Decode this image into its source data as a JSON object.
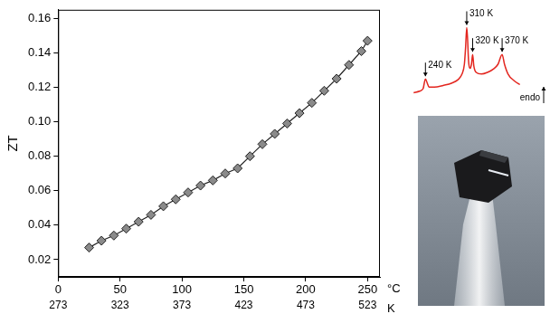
{
  "chart_data": [
    {
      "type": "line",
      "x_label": "°C",
      "x2_label": "K",
      "y_label": "ZT",
      "x": [
        25,
        35,
        45,
        55,
        65,
        75,
        85,
        95,
        105,
        115,
        125,
        135,
        145,
        155,
        165,
        175,
        185,
        195,
        205,
        215,
        225,
        235,
        245,
        250
      ],
      "values": [
        0.027,
        0.031,
        0.034,
        0.038,
        0.042,
        0.046,
        0.051,
        0.055,
        0.059,
        0.063,
        0.066,
        0.07,
        0.073,
        0.08,
        0.087,
        0.093,
        0.099,
        0.105,
        0.111,
        0.118,
        0.125,
        0.133,
        0.141,
        0.147
      ],
      "color": "#222222",
      "marker": "diamond",
      "line_style": "solid",
      "xlim": [
        0,
        260
      ],
      "xticks": [
        0,
        50,
        100,
        150,
        200,
        250
      ],
      "x2lim": [
        273,
        533
      ],
      "x2ticks": [
        273,
        323,
        373,
        423,
        473,
        523
      ],
      "ylim": [
        0.01,
        0.165
      ],
      "yticks": [
        0.02,
        0.04,
        0.06,
        0.08,
        {
          "value": 0.1,
          "label": "0.10"
        },
        0.12,
        0.14,
        0.16
      ],
      "grid": false
    },
    {
      "type": "line",
      "x": [
        220,
        230,
        236,
        240,
        243,
        246,
        255,
        270,
        285,
        295,
        302,
        306,
        308,
        310,
        311.5,
        313,
        316,
        318,
        320,
        322,
        326,
        335,
        345,
        355,
        363,
        370,
        374,
        380,
        390,
        400
      ],
      "values": [
        0.15,
        0.17,
        0.2,
        0.32,
        0.27,
        0.22,
        0.22,
        0.24,
        0.27,
        0.31,
        0.38,
        0.5,
        0.7,
        0.95,
        0.8,
        0.55,
        0.45,
        0.5,
        0.62,
        0.48,
        0.4,
        0.38,
        0.4,
        0.44,
        0.5,
        0.62,
        0.5,
        0.38,
        0.3,
        0.25
      ],
      "color": "#e3261f",
      "line_style": "solid",
      "xlim": [
        215,
        445
      ],
      "ylim": [
        0,
        1
      ],
      "tick_labels": false,
      "annotations": [
        {
          "text": "240 K",
          "x": 240
        },
        {
          "text": "310 K",
          "x": 310
        },
        {
          "text": "320 K",
          "x": 320
        },
        {
          "text": "370 K",
          "x": 370
        },
        {
          "text": "endo"
        }
      ]
    }
  ]
}
